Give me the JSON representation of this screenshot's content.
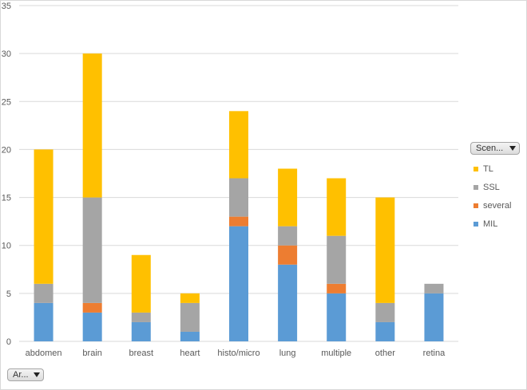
{
  "chart_data": {
    "type": "bar",
    "stacked": true,
    "categories": [
      "abdomen",
      "brain",
      "breast",
      "heart",
      "histo/micro",
      "lung",
      "multiple",
      "other",
      "retina"
    ],
    "series": [
      {
        "name": "MIL",
        "color": "#5b9bd5",
        "values": [
          4,
          3,
          2,
          1,
          12,
          8,
          5,
          2,
          5
        ]
      },
      {
        "name": "several",
        "color": "#ed7d31",
        "values": [
          0,
          1,
          0,
          0,
          1,
          2,
          1,
          0,
          0
        ]
      },
      {
        "name": "SSL",
        "color": "#a5a5a5",
        "values": [
          2,
          11,
          1,
          3,
          4,
          2,
          5,
          2,
          1
        ]
      },
      {
        "name": "TL",
        "color": "#ffc000",
        "values": [
          14,
          15,
          6,
          1,
          7,
          6,
          6,
          11,
          0
        ]
      }
    ],
    "ylim": [
      0,
      35
    ],
    "yticks": [
      0,
      5,
      10,
      15,
      20,
      25,
      30,
      35
    ],
    "grid": true,
    "legend_position": "right"
  },
  "legend": {
    "filter_label": "Scen...",
    "items": [
      {
        "name": "TL",
        "color": "#ffc000"
      },
      {
        "name": "SSL",
        "color": "#a5a5a5"
      },
      {
        "name": "several",
        "color": "#ed7d31"
      },
      {
        "name": "MIL",
        "color": "#5b9bd5"
      }
    ]
  },
  "axis_filter": {
    "label": "Ar..."
  }
}
